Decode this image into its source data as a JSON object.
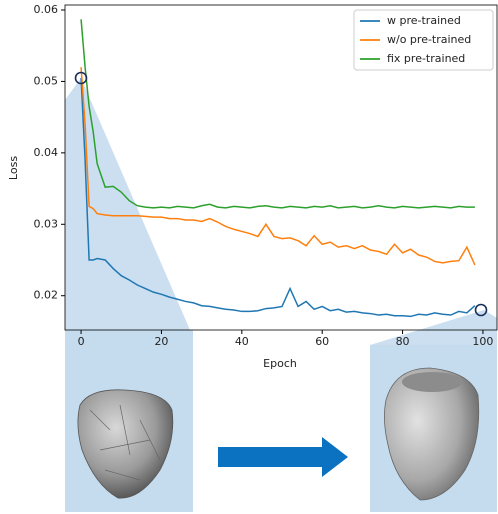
{
  "chart_data": {
    "type": "line",
    "x_label": "Epoch",
    "y_label": "Loss",
    "x": [
      0,
      1,
      2,
      3,
      4,
      6,
      8,
      10,
      12,
      14,
      16,
      18,
      20,
      22,
      24,
      26,
      28,
      30,
      32,
      34,
      36,
      38,
      40,
      42,
      44,
      46,
      48,
      50,
      52,
      54,
      56,
      58,
      60,
      62,
      64,
      66,
      68,
      70,
      72,
      74,
      76,
      78,
      80,
      82,
      84,
      86,
      88,
      90,
      92,
      94,
      96,
      98
    ],
    "series": [
      {
        "name": "w pre-trained",
        "color": "#1f77b4",
        "values": [
          0.0505,
          0.039,
          0.025,
          0.025,
          0.0252,
          0.025,
          0.0238,
          0.0228,
          0.0222,
          0.0215,
          0.021,
          0.0205,
          0.0202,
          0.0198,
          0.0195,
          0.0192,
          0.019,
          0.0186,
          0.0185,
          0.0183,
          0.0181,
          0.018,
          0.0178,
          0.0178,
          0.0179,
          0.0182,
          0.0183,
          0.0185,
          0.021,
          0.0185,
          0.0192,
          0.0181,
          0.0185,
          0.0179,
          0.0181,
          0.0177,
          0.0178,
          0.0176,
          0.0175,
          0.0173,
          0.0174,
          0.0172,
          0.0172,
          0.0171,
          0.0174,
          0.0173,
          0.0176,
          0.0174,
          0.0173,
          0.0178,
          0.0176,
          0.0186
        ]
      },
      {
        "name": "w/o pre-trained",
        "color": "#ff7f0e",
        "values": [
          0.052,
          0.044,
          0.0325,
          0.0322,
          0.0315,
          0.0313,
          0.0312,
          0.0312,
          0.0312,
          0.0312,
          0.0311,
          0.031,
          0.031,
          0.0308,
          0.0308,
          0.0306,
          0.0306,
          0.0304,
          0.0308,
          0.0303,
          0.0297,
          0.0293,
          0.029,
          0.0287,
          0.0283,
          0.03,
          0.0283,
          0.028,
          0.0281,
          0.0277,
          0.027,
          0.0284,
          0.0272,
          0.0275,
          0.0268,
          0.027,
          0.0266,
          0.027,
          0.0264,
          0.0262,
          0.0258,
          0.0272,
          0.026,
          0.0265,
          0.0257,
          0.0254,
          0.0248,
          0.0246,
          0.0248,
          0.0249,
          0.0268,
          0.0243
        ]
      },
      {
        "name": "fix pre-trained",
        "color": "#2ca02c",
        "values": [
          0.0587,
          0.052,
          0.0465,
          0.043,
          0.0385,
          0.0352,
          0.0353,
          0.0345,
          0.0333,
          0.0326,
          0.0324,
          0.0323,
          0.0324,
          0.0323,
          0.0325,
          0.0324,
          0.0323,
          0.0326,
          0.0328,
          0.0324,
          0.0323,
          0.0325,
          0.0324,
          0.0323,
          0.0325,
          0.0326,
          0.0324,
          0.0323,
          0.0325,
          0.0324,
          0.0323,
          0.0325,
          0.0324,
          0.0326,
          0.0323,
          0.0324,
          0.0325,
          0.0323,
          0.0324,
          0.0326,
          0.0324,
          0.0323,
          0.0325,
          0.0324,
          0.0323,
          0.0324,
          0.0325,
          0.0324,
          0.0323,
          0.0325,
          0.0324,
          0.0324
        ]
      }
    ],
    "xlim": [
      -4,
      103.5
    ],
    "xticks": [
      0,
      20,
      40,
      60,
      80,
      100
    ],
    "ylim": [
      0.0152,
      0.0607
    ],
    "yticks": [
      0.02,
      0.03,
      0.04,
      0.05,
      0.06
    ],
    "legend": "upper right"
  }
}
